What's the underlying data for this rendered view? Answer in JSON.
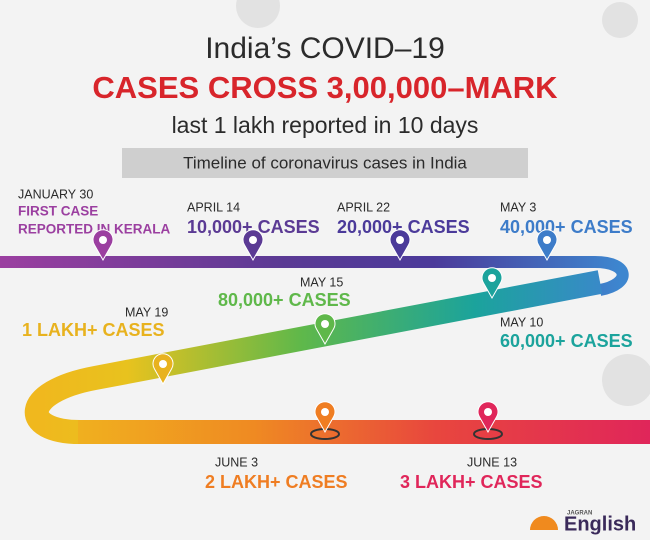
{
  "header": {
    "title": "India’s COVID–19",
    "headline": "CASES CROSS 3,00,000–MARK",
    "subtitle": "last 1 lakh reported in 10 days"
  },
  "banner": "Timeline of coronavirus cases in India",
  "milestones": [
    {
      "date": "JANUARY 30",
      "label": [
        "FIRST CASE",
        "REPORTED IN KERALA"
      ]
    },
    {
      "date": "APRIL 14",
      "label": [
        "10,000+ CASES"
      ]
    },
    {
      "date": "APRIL 22",
      "label": [
        "20,000+ CASES"
      ]
    },
    {
      "date": "MAY 3",
      "label": [
        "40,000+ CASES"
      ]
    },
    {
      "date": "MAY 10",
      "label": [
        "60,000+ CASES"
      ]
    },
    {
      "date": "MAY 15",
      "label": [
        "80,000+ CASES"
      ]
    },
    {
      "date": "MAY 19",
      "label": [
        "1 LAKH+ CASES"
      ]
    },
    {
      "date": "JUNE 3",
      "label": [
        "2 LAKH+ CASES"
      ]
    },
    {
      "date": "JUNE 13",
      "label": [
        "3 LAKH+ CASES"
      ]
    }
  ],
  "logo": {
    "brand": "JAGRAN",
    "name": "English"
  }
}
